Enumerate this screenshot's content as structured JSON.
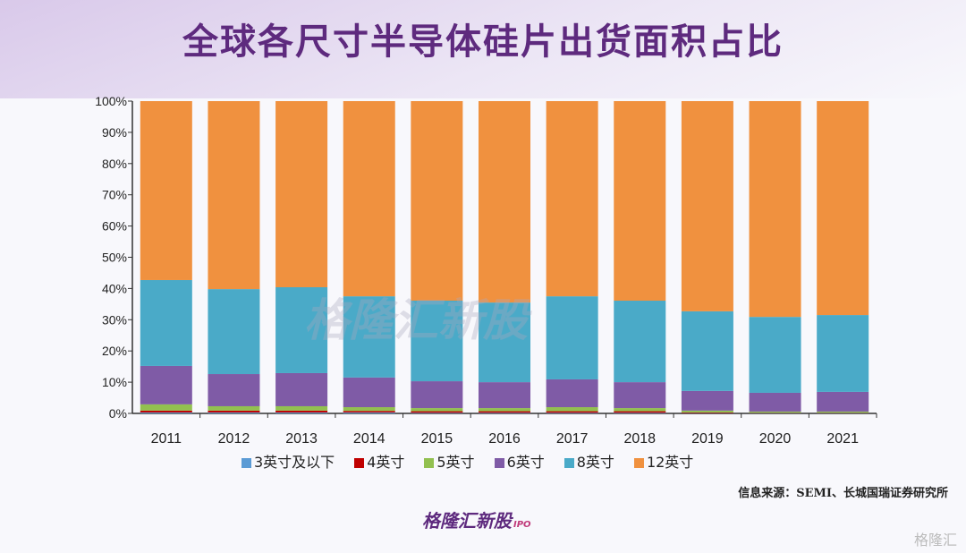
{
  "title": "全球各尺寸半导体硅片出货面积占比",
  "source": "信息来源：SEMI、长城国瑞证券研究所",
  "logo": {
    "text": "格隆汇新股",
    "sub": "IPO"
  },
  "watermark": "格隆汇新股",
  "corner_watermark": "格隆汇",
  "chart_data": {
    "type": "bar",
    "stacked": true,
    "categories": [
      "2011",
      "2012",
      "2013",
      "2014",
      "2015",
      "2016",
      "2017",
      "2018",
      "2019",
      "2020",
      "2021"
    ],
    "ylim": [
      0,
      100
    ],
    "yticks": [
      "0%",
      "10%",
      "20%",
      "30%",
      "40%",
      "50%",
      "60%",
      "70%",
      "80%",
      "90%",
      "100%"
    ],
    "legend_position": "bottom",
    "series": [
      {
        "name": "3英寸及以下",
        "color": "#5b9bd5",
        "values": [
          0.3,
          0.3,
          0.3,
          0.3,
          0.2,
          0.2,
          0.2,
          0.2,
          0.1,
          0.1,
          0.1
        ]
      },
      {
        "name": "4英寸",
        "color": "#c00000",
        "values": [
          0.6,
          0.6,
          0.6,
          0.5,
          0.5,
          0.5,
          0.5,
          0.5,
          0.2,
          0.1,
          0.1
        ]
      },
      {
        "name": "5英寸",
        "color": "#92c050",
        "values": [
          2.0,
          1.4,
          1.4,
          1.2,
          1.0,
          1.0,
          1.3,
          1.0,
          0.6,
          0.4,
          0.4
        ]
      },
      {
        "name": "6英寸",
        "color": "#7f5ba6",
        "values": [
          12.3,
          10.3,
          10.6,
          9.5,
          8.6,
          8.3,
          8.9,
          8.3,
          6.3,
          6.0,
          6.3
        ]
      },
      {
        "name": "8英寸",
        "color": "#4aaac8",
        "values": [
          27.5,
          27.2,
          27.5,
          26.0,
          25.8,
          25.5,
          26.6,
          26.1,
          25.5,
          24.3,
          24.6
        ]
      },
      {
        "name": "12英寸",
        "color": "#f0913f",
        "values": [
          57.3,
          60.2,
          59.6,
          62.5,
          63.9,
          64.5,
          62.5,
          63.9,
          67.3,
          69.1,
          68.5
        ]
      }
    ]
  }
}
